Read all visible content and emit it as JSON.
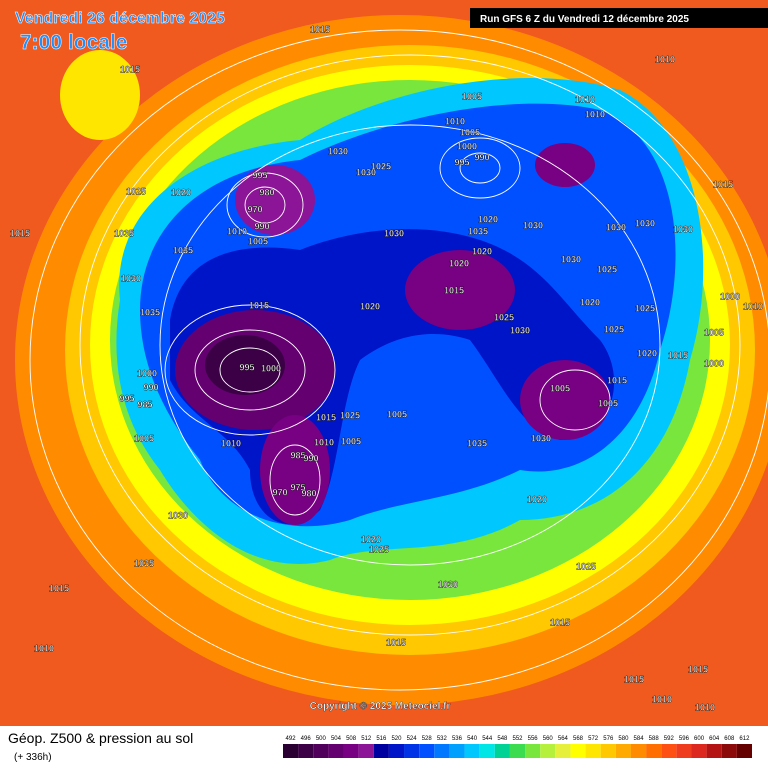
{
  "header": {
    "date": "Vendredi 26 décembre 2025",
    "time": "7:00 locale",
    "run": "Run GFS 6 Z du Vendredi 12 décembre 2025"
  },
  "map": {
    "copyright": "Copyright © 2025 Meteociel.fr",
    "pressure_labels": [
      1015,
      1015,
      1010,
      1005,
      1010,
      1010,
      1010,
      1005,
      1000,
      990,
      995,
      1030,
      1030,
      1025,
      995,
      980,
      970,
      1010,
      990,
      1005,
      1025,
      1020,
      1015,
      1035,
      1035,
      1030,
      1035,
      1015,
      1020,
      1030,
      1020,
      1035,
      1020,
      1020,
      1015,
      1030,
      1030,
      1030,
      1030,
      1030,
      1025,
      1020,
      1025,
      1030,
      1025,
      1025,
      1015,
      1000,
      1010,
      1005,
      1000,
      1015,
      1020,
      995,
      1000,
      1000,
      990,
      995,
      985,
      1005,
      1010,
      1015,
      1025,
      1005,
      1005,
      1005,
      1015,
      1035,
      1030,
      1010,
      1005,
      985,
      990,
      970,
      975,
      980,
      1030,
      1020,
      1020,
      1025,
      1025,
      1035,
      1015,
      1030,
      1015,
      1015,
      1010,
      1015,
      1015,
      1010,
      1010
    ]
  },
  "footer": {
    "title": "Géop. Z500 & pression au sol",
    "lead": "(+ 336h)"
  },
  "legend": {
    "values": [
      492,
      496,
      500,
      504,
      508,
      512,
      516,
      520,
      524,
      528,
      532,
      536,
      540,
      544,
      548,
      552,
      556,
      560,
      564,
      568,
      572,
      576,
      580,
      584,
      588,
      592,
      596,
      600,
      604,
      608,
      612
    ],
    "colors": [
      "#2a0032",
      "#3c0046",
      "#50005a",
      "#640070",
      "#780082",
      "#8c1496",
      "#0000a0",
      "#0014c8",
      "#0032e6",
      "#0050ff",
      "#0078ff",
      "#00a0ff",
      "#00c8ff",
      "#00e6e6",
      "#00d296",
      "#3cdc50",
      "#78e63c",
      "#b4f03c",
      "#e6f03c",
      "#ffff00",
      "#ffe600",
      "#ffc800",
      "#ffaa00",
      "#ff8c00",
      "#ff6e00",
      "#ff5014",
      "#f03c1e",
      "#dc281e",
      "#b41414",
      "#8c0a0a",
      "#640000"
    ]
  }
}
